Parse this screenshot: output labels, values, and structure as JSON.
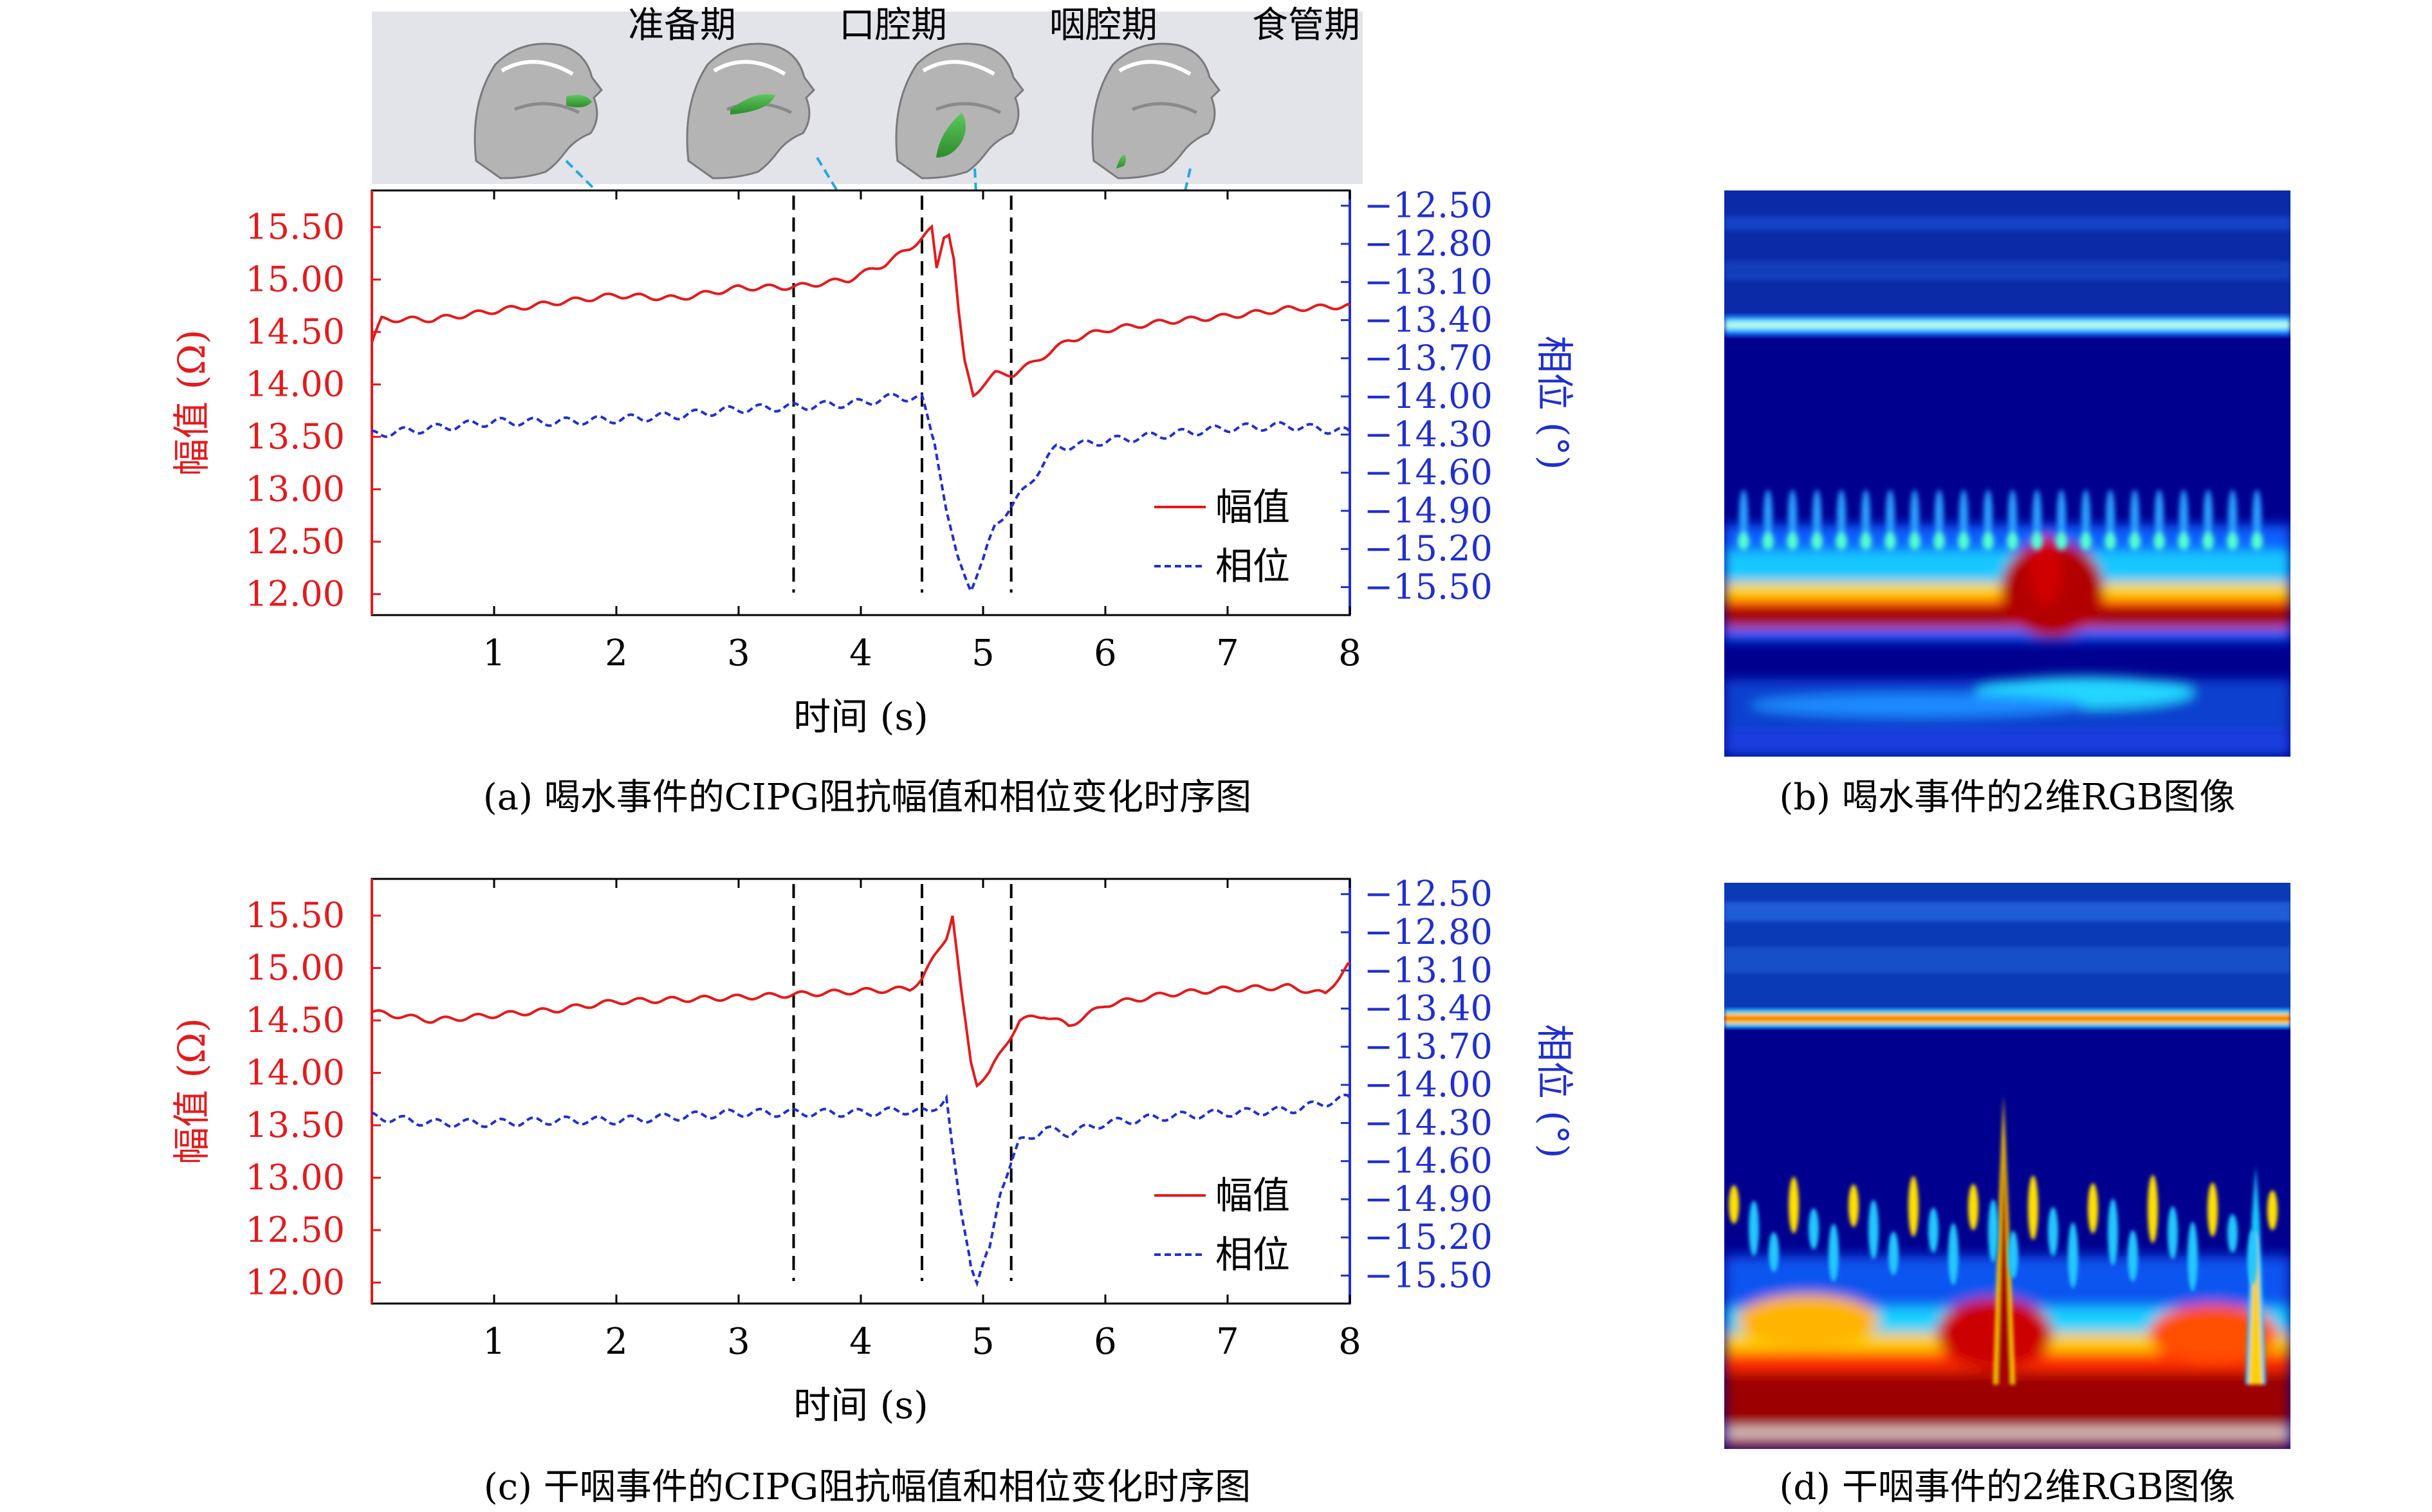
{
  "phases": {
    "labels": [
      "准备期",
      "口腔期",
      "咽腔期",
      "食管期"
    ]
  },
  "colors": {
    "amplitude": "#e41a1c",
    "phase": "#1f2fd0",
    "banner_bg": "#e3e3ea",
    "arrow": "#21a9e1",
    "tissue": "#b4b4b4",
    "bolus": "#2e9b2e"
  },
  "captions": {
    "a": "(a) 喝水事件的CIPG阻抗幅值和相位变化时序图",
    "b": "(b) 喝水事件的2维RGB图像",
    "c": "(c) 干咽事件的CIPG阻抗幅值和相位变化时序图",
    "d": "(d) 干咽事件的2维RGB图像"
  },
  "chart_data": [
    {
      "id": "a",
      "type": "line",
      "xlabel": "时间 (s)",
      "ylabel_left": "幅值 (Ω)",
      "ylabel_right": "相位 (°)",
      "xlim": [
        0,
        8
      ],
      "x_ticks": [
        "1",
        "2",
        "3",
        "4",
        "5",
        "6",
        "7",
        "8"
      ],
      "ylim_left": [
        11.8,
        15.85
      ],
      "y_ticks_left": [
        "12.00",
        "12.50",
        "13.00",
        "13.50",
        "14.00",
        "14.50",
        "15.00",
        "15.50"
      ],
      "ylim_right": [
        -15.72,
        -12.38
      ],
      "y_ticks_right": [
        "-12.50",
        "-12.80",
        "-13.10",
        "-13.40",
        "-13.70",
        "-14.00",
        "-14.30",
        "-14.60",
        "-14.90",
        "-15.20",
        "-15.50"
      ],
      "vlines": [
        3.45,
        4.5,
        5.23
      ],
      "legend": [
        "幅值",
        "相位"
      ],
      "legend_position": "lower-right",
      "series": [
        {
          "name": "幅值",
          "axis": "left",
          "style": "solid",
          "x": [
            0,
            0.08,
            0.5,
            1.0,
            1.5,
            2.0,
            2.5,
            3.0,
            3.45,
            3.9,
            4.2,
            4.4,
            4.5,
            4.58,
            4.62,
            4.68,
            4.72,
            4.76,
            4.8,
            4.85,
            4.92,
            5.0,
            5.1,
            5.25,
            5.4,
            5.7,
            6.0,
            6.5,
            7.0,
            7.5,
            8.0
          ],
          "y": [
            14.4,
            14.62,
            14.62,
            14.7,
            14.78,
            14.85,
            14.82,
            14.92,
            14.93,
            15.0,
            15.15,
            15.3,
            15.4,
            15.48,
            15.1,
            15.42,
            15.45,
            15.2,
            14.7,
            14.2,
            13.9,
            14.0,
            14.1,
            14.1,
            14.2,
            14.42,
            14.52,
            14.6,
            14.65,
            14.72,
            14.75
          ]
        },
        {
          "name": "相位",
          "axis": "right",
          "style": "dashed",
          "x": [
            0,
            0.5,
            1.0,
            1.5,
            2.0,
            2.5,
            3.0,
            3.5,
            4.0,
            4.3,
            4.5,
            4.6,
            4.7,
            4.8,
            4.9,
            5.0,
            5.1,
            5.25,
            5.4,
            5.6,
            5.8,
            6.0,
            6.5,
            7.0,
            7.5,
            8.0
          ],
          "y": [
            -14.3,
            -14.25,
            -14.2,
            -14.2,
            -14.18,
            -14.15,
            -14.1,
            -14.08,
            -14.05,
            -14.0,
            -14.02,
            -14.35,
            -14.9,
            -15.3,
            -15.5,
            -15.3,
            -15.0,
            -14.85,
            -14.65,
            -14.4,
            -14.38,
            -14.35,
            -14.3,
            -14.25,
            -14.23,
            -14.28
          ]
        }
      ]
    },
    {
      "id": "c",
      "type": "line",
      "xlabel": "时间 (s)",
      "ylabel_left": "幅值 (Ω)",
      "ylabel_right": "相位 (°)",
      "xlim": [
        0,
        8
      ],
      "x_ticks": [
        "1",
        "2",
        "3",
        "4",
        "5",
        "6",
        "7",
        "8"
      ],
      "ylim_left": [
        11.8,
        15.85
      ],
      "y_ticks_left": [
        "12.00",
        "12.50",
        "13.00",
        "13.50",
        "14.00",
        "14.50",
        "15.00",
        "15.50"
      ],
      "ylim_right": [
        -15.72,
        -12.38
      ],
      "y_ticks_right": [
        "-12.50",
        "-12.80",
        "-13.10",
        "-13.40",
        "-13.70",
        "-14.00",
        "-14.30",
        "-14.60",
        "-14.90",
        "-15.20",
        "-15.50"
      ],
      "vlines": [
        3.45,
        4.5,
        5.23
      ],
      "legend": [
        "幅值",
        "相位"
      ],
      "legend_position": "lower-right",
      "series": [
        {
          "name": "幅值",
          "axis": "left",
          "style": "solid",
          "x": [
            0,
            0.5,
            1.0,
            1.5,
            2.0,
            2.5,
            3.0,
            3.5,
            4.0,
            4.4,
            4.5,
            4.6,
            4.7,
            4.75,
            4.82,
            4.9,
            4.95,
            5.05,
            5.2,
            5.3,
            5.5,
            5.7,
            6.0,
            6.5,
            7.0,
            7.5,
            7.8,
            8.0
          ],
          "y": [
            14.58,
            14.5,
            14.55,
            14.6,
            14.68,
            14.7,
            14.72,
            14.75,
            14.78,
            14.8,
            14.9,
            15.1,
            15.3,
            15.5,
            14.8,
            14.1,
            13.9,
            14.0,
            14.3,
            14.5,
            14.55,
            14.45,
            14.65,
            14.75,
            14.8,
            14.82,
            14.75,
            15.05
          ]
        },
        {
          "name": "相位",
          "axis": "right",
          "style": "dashed",
          "x": [
            0,
            0.5,
            1.0,
            1.5,
            2.0,
            2.5,
            3.0,
            3.5,
            4.0,
            4.4,
            4.55,
            4.7,
            4.75,
            4.82,
            4.9,
            4.95,
            5.05,
            5.15,
            5.3,
            5.5,
            5.7,
            6.0,
            6.5,
            7.0,
            7.5,
            8.0
          ],
          "y": [
            -14.25,
            -14.3,
            -14.3,
            -14.28,
            -14.28,
            -14.25,
            -14.22,
            -14.22,
            -14.22,
            -14.2,
            -14.22,
            -14.1,
            -14.5,
            -15.0,
            -15.4,
            -15.55,
            -15.3,
            -14.8,
            -14.45,
            -14.35,
            -14.38,
            -14.3,
            -14.25,
            -14.22,
            -14.2,
            -14.1
          ]
        }
      ]
    },
    {
      "id": "b",
      "type": "heatmap",
      "colormap": "jet",
      "xaxis": "time",
      "yaxis": "scale",
      "features": {
        "bright_band_row": 0.24,
        "high_energy_row": 0.77,
        "spike_column": 0.57
      }
    },
    {
      "id": "d",
      "type": "heatmap",
      "colormap": "jet",
      "xaxis": "time",
      "yaxis": "scale",
      "features": {
        "bright_band_row": 0.24,
        "high_energy_row": 0.88,
        "spike_column": 0.47
      }
    }
  ]
}
